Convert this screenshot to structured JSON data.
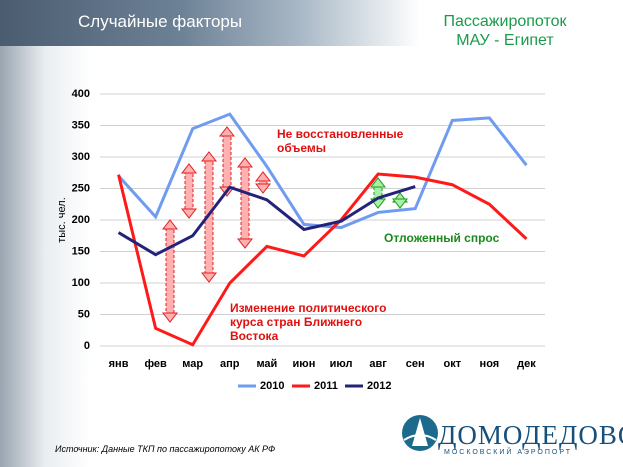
{
  "slide_title": "Случайные факторы",
  "source": "Источник: Данные ТКП по пассажиропотоку АК РФ",
  "logo": {
    "name": "ДОМОДЕДОВО",
    "subtitle": "МОСКОВСКИЙ АЭРОПОРТ"
  },
  "chart_data": {
    "type": "line",
    "title": "Пассажиропоток МАУ - Египет",
    "y_label": "тыс. чел.",
    "categories": [
      "янв",
      "фев",
      "мар",
      "апр",
      "май",
      "июн",
      "июл",
      "авг",
      "сен",
      "окт",
      "ноя",
      "дек"
    ],
    "series": [
      {
        "name": "2010",
        "color": "#6f9cf0",
        "values": [
          270,
          205,
          345,
          368,
          285,
          193,
          188,
          212,
          218,
          358,
          362,
          287
        ]
      },
      {
        "name": "2011",
        "color": "#ff1a1a",
        "values": [
          272,
          28,
          2,
          100,
          158,
          143,
          200,
          273,
          268,
          256,
          225,
          170
        ]
      },
      {
        "name": "2012",
        "color": "#23237a",
        "values": [
          180,
          145,
          175,
          252,
          232,
          185,
          198,
          235,
          253,
          null,
          null,
          null
        ]
      }
    ],
    "ylim": [
      0,
      400
    ],
    "yticks": [
      0,
      50,
      100,
      150,
      200,
      250,
      300,
      350,
      400
    ],
    "grid": true,
    "legend": "bottom",
    "annotations": [
      {
        "text": "Не восстановленные объемы",
        "color": "#e01010"
      },
      {
        "text": "Отложенный спрос",
        "color": "#1a8a1a"
      },
      {
        "text": "Изменение политического курса стран Ближнего Востока",
        "color": "#e01010"
      }
    ]
  }
}
